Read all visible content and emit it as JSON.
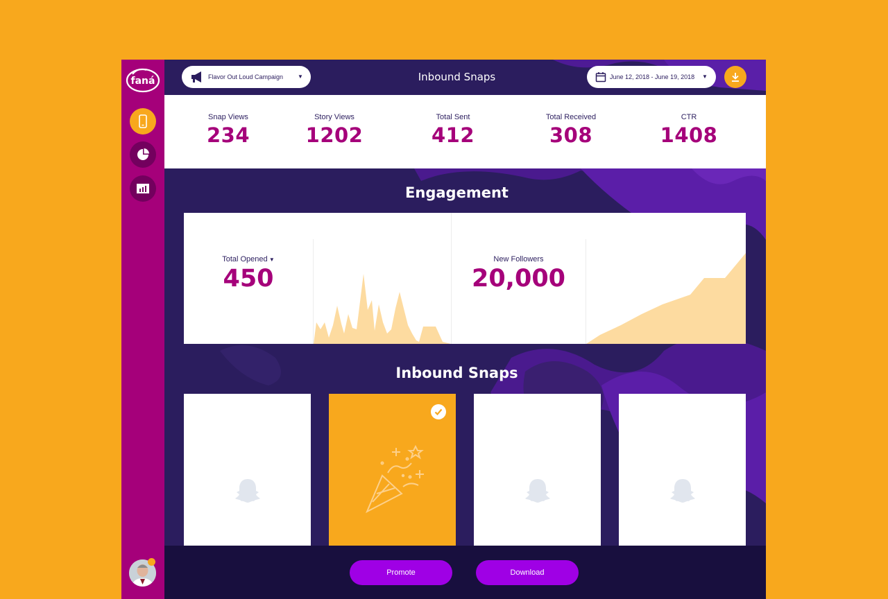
{
  "header": {
    "title": "Inbound Snaps",
    "campaign": "Flavor Out Loud Campaign",
    "date_range": "June 12, 2018 - June 19, 2018"
  },
  "sidebar": {
    "logo_text": "faná",
    "items": [
      {
        "name": "snaps",
        "icon": "phone-icon",
        "active": true
      },
      {
        "name": "overview",
        "icon": "pie-chart-icon",
        "active": false
      },
      {
        "name": "reports",
        "icon": "bar-chart-icon",
        "active": false
      }
    ]
  },
  "stats": [
    {
      "label": "Snap Views",
      "value": "234"
    },
    {
      "label": "Story Views",
      "value": "1202"
    },
    {
      "label": "Total Sent",
      "value": "412"
    },
    {
      "label": "Total Received",
      "value": "308"
    },
    {
      "label": "CTR",
      "value": "1408"
    }
  ],
  "engagement": {
    "title": "Engagement",
    "total_opened": {
      "label": "Total Opened",
      "value": "450"
    },
    "new_followers": {
      "label": "New Followers",
      "value": "20,000"
    }
  },
  "snaps": {
    "title": "Inbound Snaps",
    "cards": [
      {
        "icon": "ghost-icon",
        "selected": false
      },
      {
        "icon": "party-popper-icon",
        "selected": true
      },
      {
        "icon": "ghost-icon",
        "selected": false
      },
      {
        "icon": "ghost-icon",
        "selected": false
      }
    ]
  },
  "footer": {
    "promote_label": "Promote",
    "download_label": "Download"
  },
  "colors": {
    "accent": "#F8A81D",
    "brand": "#A5007A",
    "navy": "#2B1D5E",
    "button": "#9F00E5",
    "chart_fill": "#FDDBA0"
  }
}
